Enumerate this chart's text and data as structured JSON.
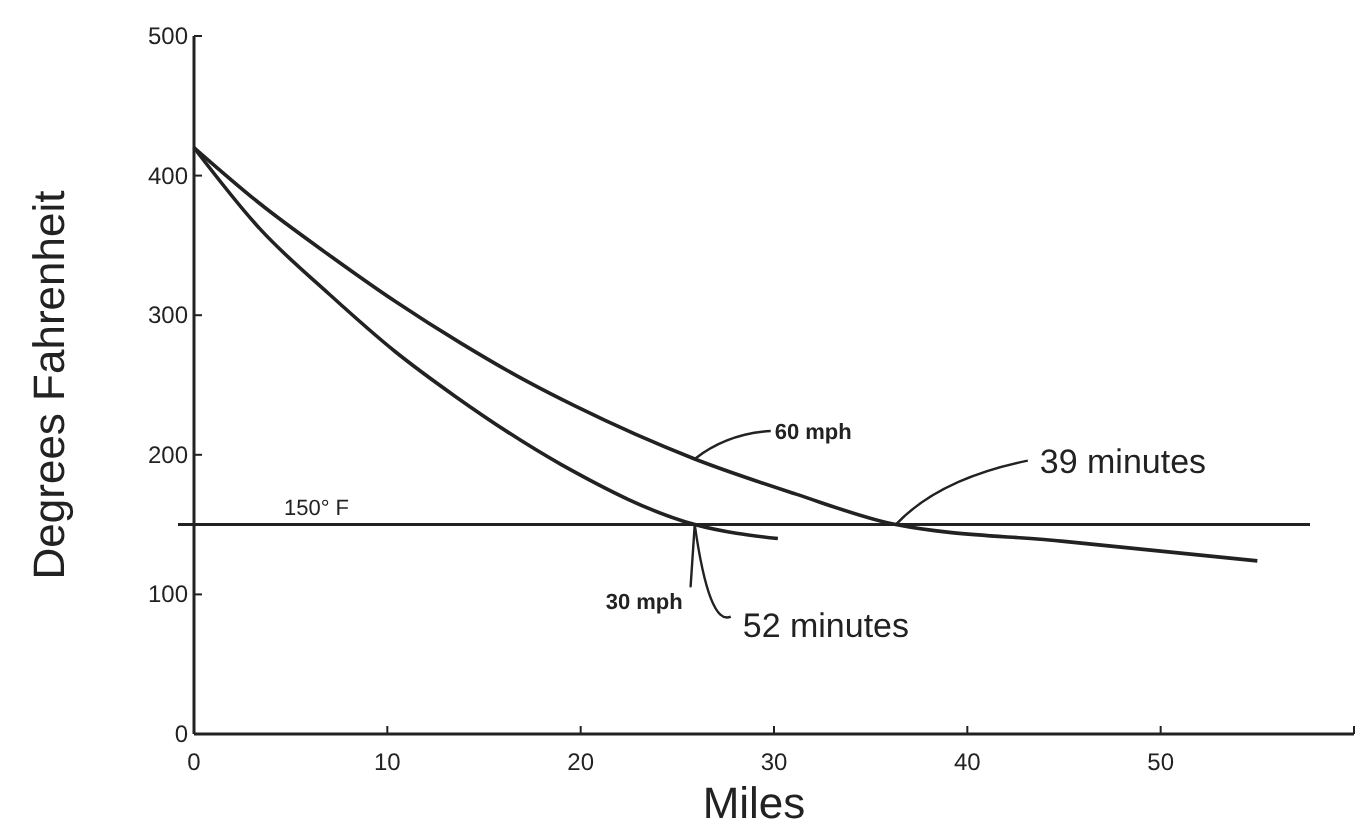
{
  "chart_data": {
    "type": "line",
    "xlabel": "Miles",
    "ylabel": "Degrees Fahrenheit",
    "xlim": [
      0,
      60
    ],
    "ylim": [
      0,
      500
    ],
    "xticks": [
      0,
      10,
      20,
      30,
      40,
      50,
      {
        "value": 60,
        "label": null
      }
    ],
    "yticks": [
      0,
      100,
      200,
      300,
      400,
      500
    ],
    "grid": false,
    "marker": "none",
    "line_style": "solid",
    "x": [
      0,
      3.4,
      7,
      10.4,
      13.8,
      17.3,
      19.7,
      25.9,
      31.1,
      36.3,
      45,
      55
    ],
    "series": [
      {
        "name": "60 mph",
        "color": "#222222",
        "values": [
          420,
          380,
          343,
          310,
          280,
          252,
          235,
          197,
          172,
          150,
          138,
          124
        ]
      },
      {
        "name": "30 mph",
        "color": "#222222",
        "x": [
          0,
          3.4,
          7,
          10.4,
          13.5,
          19,
          25.9,
          30.2
        ],
        "values": [
          420,
          362,
          315,
          274,
          242,
          193,
          150,
          140
        ]
      }
    ],
    "ref_lines": [
      {
        "axis": "y",
        "value": 150,
        "label": "150° F",
        "color": "#222222"
      }
    ],
    "annotations": [
      {
        "text": "39 minutes",
        "x": 36.3,
        "y": 150
      },
      {
        "text": "52 minutes",
        "x": 25.9,
        "y": 150
      }
    ]
  }
}
